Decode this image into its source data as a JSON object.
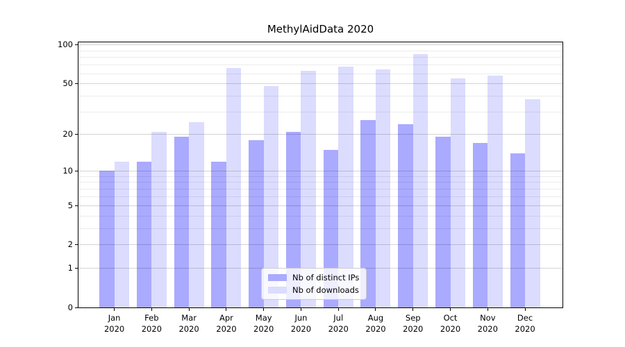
{
  "title": "MethylAidData 2020",
  "chart_data": {
    "type": "bar",
    "title": "MethylAidData 2020",
    "categories": [
      "Jan 2020",
      "Feb 2020",
      "Mar 2020",
      "Apr 2020",
      "May 2020",
      "Jun 2020",
      "Jul 2020",
      "Aug 2020",
      "Sep 2020",
      "Oct 2020",
      "Nov 2020",
      "Dec 2020"
    ],
    "series": [
      {
        "name": "Nb of distinct IPs",
        "color": "#aaaaff",
        "values": [
          10,
          12,
          19,
          12,
          18,
          21,
          15,
          26,
          24,
          19,
          17,
          14
        ]
      },
      {
        "name": "Nb of downloads",
        "color": "#dcdcff",
        "values": [
          12,
          21,
          25,
          66,
          48,
          63,
          68,
          65,
          85,
          55,
          58,
          38
        ]
      }
    ],
    "xlabel": "",
    "ylabel": "",
    "yscale": "log1p",
    "ylim": [
      0,
      100
    ],
    "yticks": [
      0,
      1,
      2,
      5,
      10,
      20,
      50,
      100
    ],
    "yticks_minor": [
      3,
      4,
      6,
      7,
      8,
      9,
      30,
      40,
      60,
      70,
      80,
      90
    ],
    "grid": "horizontal",
    "legend_position": "lower center"
  }
}
